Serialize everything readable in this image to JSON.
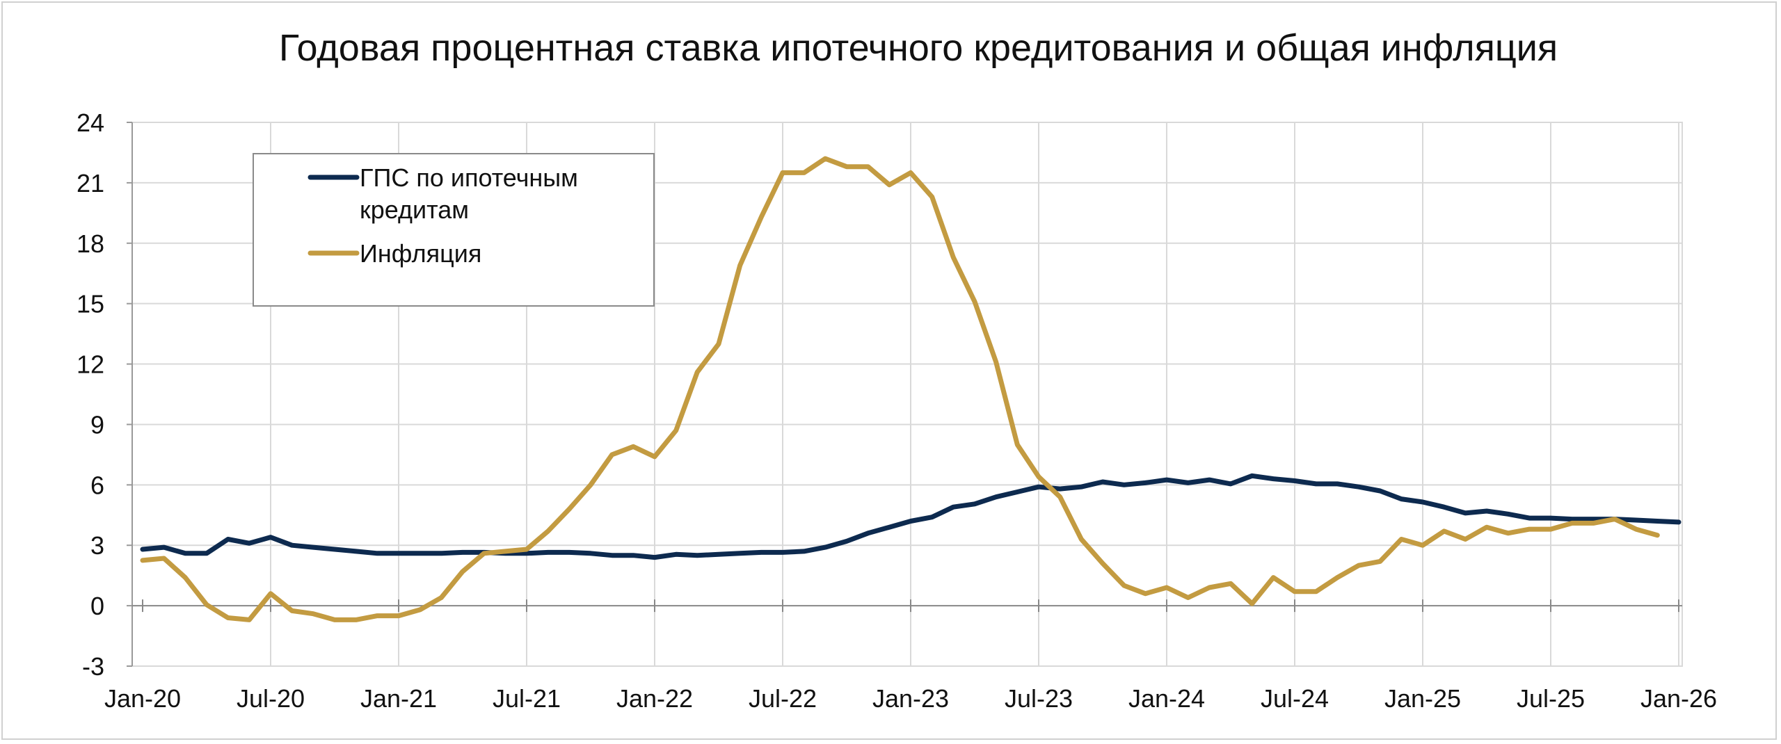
{
  "chart_data": {
    "type": "line",
    "title": "Годовая процентная ставка ипотечного кредитования и общая инфляция",
    "xlabel": "",
    "ylabel": "",
    "ylim": [
      -3,
      24
    ],
    "y_ticks": [
      "24",
      "21",
      "18",
      "15",
      "12",
      "9",
      "6",
      "3",
      "0",
      "-3"
    ],
    "x_tick_labels": [
      "Jan-20",
      "Jul-20",
      "Jan-21",
      "Jul-21",
      "Jan-22",
      "Jul-22",
      "Jan-23",
      "Jul-23",
      "Jan-24",
      "Jul-24",
      "Jan-25",
      "Jul-25",
      "Jan-26"
    ],
    "x_start": "Jan-20",
    "grid": true,
    "legend_position": "top-left",
    "series": [
      {
        "name": "ГПС по ипотечным кредитам",
        "color": "#0d2a4f",
        "values": [
          2.8,
          2.9,
          2.6,
          2.6,
          3.3,
          3.1,
          3.4,
          3.0,
          2.9,
          2.8,
          2.7,
          2.6,
          2.6,
          2.6,
          2.6,
          2.65,
          2.65,
          2.6,
          2.6,
          2.65,
          2.65,
          2.6,
          2.5,
          2.5,
          2.4,
          2.55,
          2.5,
          2.55,
          2.6,
          2.65,
          2.65,
          2.7,
          2.9,
          3.2,
          3.6,
          3.9,
          4.2,
          4.4,
          4.9,
          5.05,
          5.4,
          5.65,
          5.9,
          5.8,
          5.9,
          6.15,
          6.0,
          6.1,
          6.25,
          6.1,
          6.25,
          6.05,
          6.45,
          6.3,
          6.2,
          6.05,
          6.05,
          5.9,
          5.7,
          5.3,
          5.15,
          4.9,
          4.6,
          4.7,
          4.55,
          4.35,
          4.35,
          4.3,
          4.3,
          4.3,
          4.25,
          4.2,
          4.15
        ]
      },
      {
        "name": "Инфляция",
        "color": "#c39b41",
        "values": [
          2.25,
          2.35,
          1.4,
          0.05,
          -0.6,
          -0.7,
          0.6,
          -0.25,
          -0.4,
          -0.7,
          -0.7,
          -0.5,
          -0.5,
          -0.2,
          0.4,
          1.7,
          2.6,
          2.7,
          2.8,
          3.7,
          4.8,
          6.0,
          7.5,
          7.9,
          7.4,
          8.7,
          11.6,
          13.0,
          16.9,
          19.3,
          21.5,
          21.5,
          22.2,
          21.8,
          21.8,
          20.9,
          21.5,
          20.3,
          17.3,
          15.1,
          12.1,
          8.0,
          6.4,
          5.4,
          3.3,
          2.1,
          1.0,
          0.6,
          0.9,
          0.4,
          0.9,
          1.1,
          0.1,
          1.4,
          0.7,
          0.7,
          1.4,
          2.0,
          2.2,
          3.3,
          3.0,
          3.7,
          3.3,
          3.9,
          3.6,
          3.8,
          3.8,
          4.1,
          4.1,
          4.3,
          3.8,
          3.5
        ]
      }
    ]
  }
}
